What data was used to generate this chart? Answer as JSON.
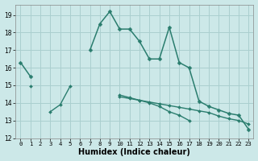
{
  "xlabel": "Humidex (Indice chaleur)",
  "x": [
    0,
    1,
    2,
    3,
    4,
    5,
    6,
    7,
    8,
    9,
    10,
    11,
    12,
    13,
    14,
    15,
    16,
    17,
    18,
    19,
    20,
    21,
    22,
    23
  ],
  "line1": [
    16.3,
    15.5,
    null,
    null,
    null,
    null,
    null,
    17.0,
    18.5,
    19.2,
    18.2,
    18.2,
    17.5,
    16.5,
    16.5,
    18.3,
    16.3,
    16.0,
    14.1,
    null,
    null,
    null,
    null,
    12.5
  ],
  "line1_cont": [
    [
      0,
      1
    ],
    [
      7,
      8,
      9,
      10,
      11,
      12,
      13,
      14,
      15,
      16,
      17,
      18
    ],
    [
      22,
      23
    ]
  ],
  "line_main": [
    16.3,
    15.5,
    null,
    null,
    null,
    null,
    null,
    17.0,
    18.5,
    19.2,
    18.2,
    18.2,
    17.5,
    16.5,
    16.5,
    18.3,
    16.3,
    16.0,
    14.1,
    13.8,
    13.6,
    13.4,
    13.3,
    12.5
  ],
  "line_upper": [
    null,
    null,
    null,
    null,
    null,
    null,
    null,
    null,
    null,
    null,
    null,
    null,
    null,
    null,
    null,
    null,
    null,
    null,
    null,
    null,
    null,
    null,
    null,
    null
  ],
  "line_mid": [
    null,
    14.95,
    null,
    null,
    null,
    null,
    null,
    null,
    null,
    null,
    14.35,
    14.25,
    14.15,
    14.05,
    13.95,
    13.85,
    13.75,
    13.65,
    13.55,
    13.45,
    13.25,
    13.1,
    13.0,
    12.8
  ],
  "line_low": [
    null,
    null,
    null,
    13.5,
    13.9,
    14.95,
    null,
    null,
    null,
    null,
    14.45,
    14.3,
    14.15,
    14.0,
    13.8,
    13.5,
    13.3,
    13.0,
    null,
    null,
    null,
    null,
    null,
    null
  ],
  "ylim": [
    12,
    19.6
  ],
  "xlim": [
    -0.5,
    23.5
  ],
  "yticks": [
    12,
    13,
    14,
    15,
    16,
    17,
    18,
    19
  ],
  "xticks": [
    0,
    1,
    2,
    3,
    4,
    5,
    6,
    7,
    8,
    9,
    10,
    11,
    12,
    13,
    14,
    15,
    16,
    17,
    18,
    19,
    20,
    21,
    22,
    23
  ],
  "line_color": "#2a7d6e",
  "bg_color": "#cce8e8",
  "grid_color": "#aacfcf"
}
